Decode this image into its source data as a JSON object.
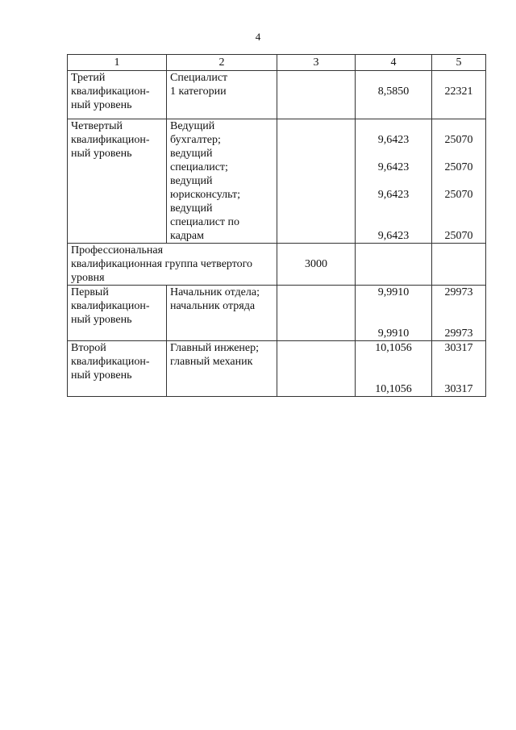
{
  "page_number": "4",
  "headers": [
    "1",
    "2",
    "3",
    "4",
    "5"
  ],
  "rows": [
    {
      "c1": [
        "Третий",
        "квалификацион-",
        "ный уровень"
      ],
      "c2": [
        "Специалист",
        "1 категории"
      ],
      "c3": [],
      "c4": [
        "",
        "8,5850"
      ],
      "c5": [
        "",
        "22321"
      ],
      "pad": 2
    },
    {
      "c1": [
        "Четвертый",
        "квалификацион-",
        "ный уровень"
      ],
      "c2": [
        "Ведущий",
        "бухгалтер;",
        "ведущий",
        "специалист;",
        "ведущий",
        "юрисконсульт;",
        "ведущий",
        "специалист по",
        "кадрам"
      ],
      "c3": [],
      "c4": [
        "",
        "9,6423",
        "",
        "9,6423",
        "",
        "9,6423",
        "",
        "",
        "9,6423"
      ],
      "c5": [
        "",
        "25070",
        "",
        "25070",
        "",
        "25070",
        "",
        "",
        "25070"
      ],
      "pad": 0
    },
    {
      "group": true,
      "c12": [
        "Профессиональная",
        "квалификационная группа четвертого",
        "уровня"
      ],
      "c3": [
        "",
        "3000"
      ],
      "c4": [],
      "c5": [],
      "pad": 0
    },
    {
      "c1": [
        "Первый",
        "квалификацион-",
        "ный уровень"
      ],
      "c2": [
        "Начальник отдела;",
        "начальник отряда"
      ],
      "c3": [],
      "c4": [
        "9,9910",
        "",
        "",
        "9,9910"
      ],
      "c5": [
        "29973",
        "",
        "",
        "29973"
      ],
      "pad": 0
    },
    {
      "c1": [
        "Второй",
        "квалификацион-",
        "ный уровень"
      ],
      "c2": [
        "Главный инженер;",
        "главный механик"
      ],
      "c3": [],
      "c4": [
        "10,1056",
        "",
        "",
        "10,1056"
      ],
      "c5": [
        "30317",
        "",
        "",
        "30317"
      ],
      "pad": 0
    }
  ]
}
